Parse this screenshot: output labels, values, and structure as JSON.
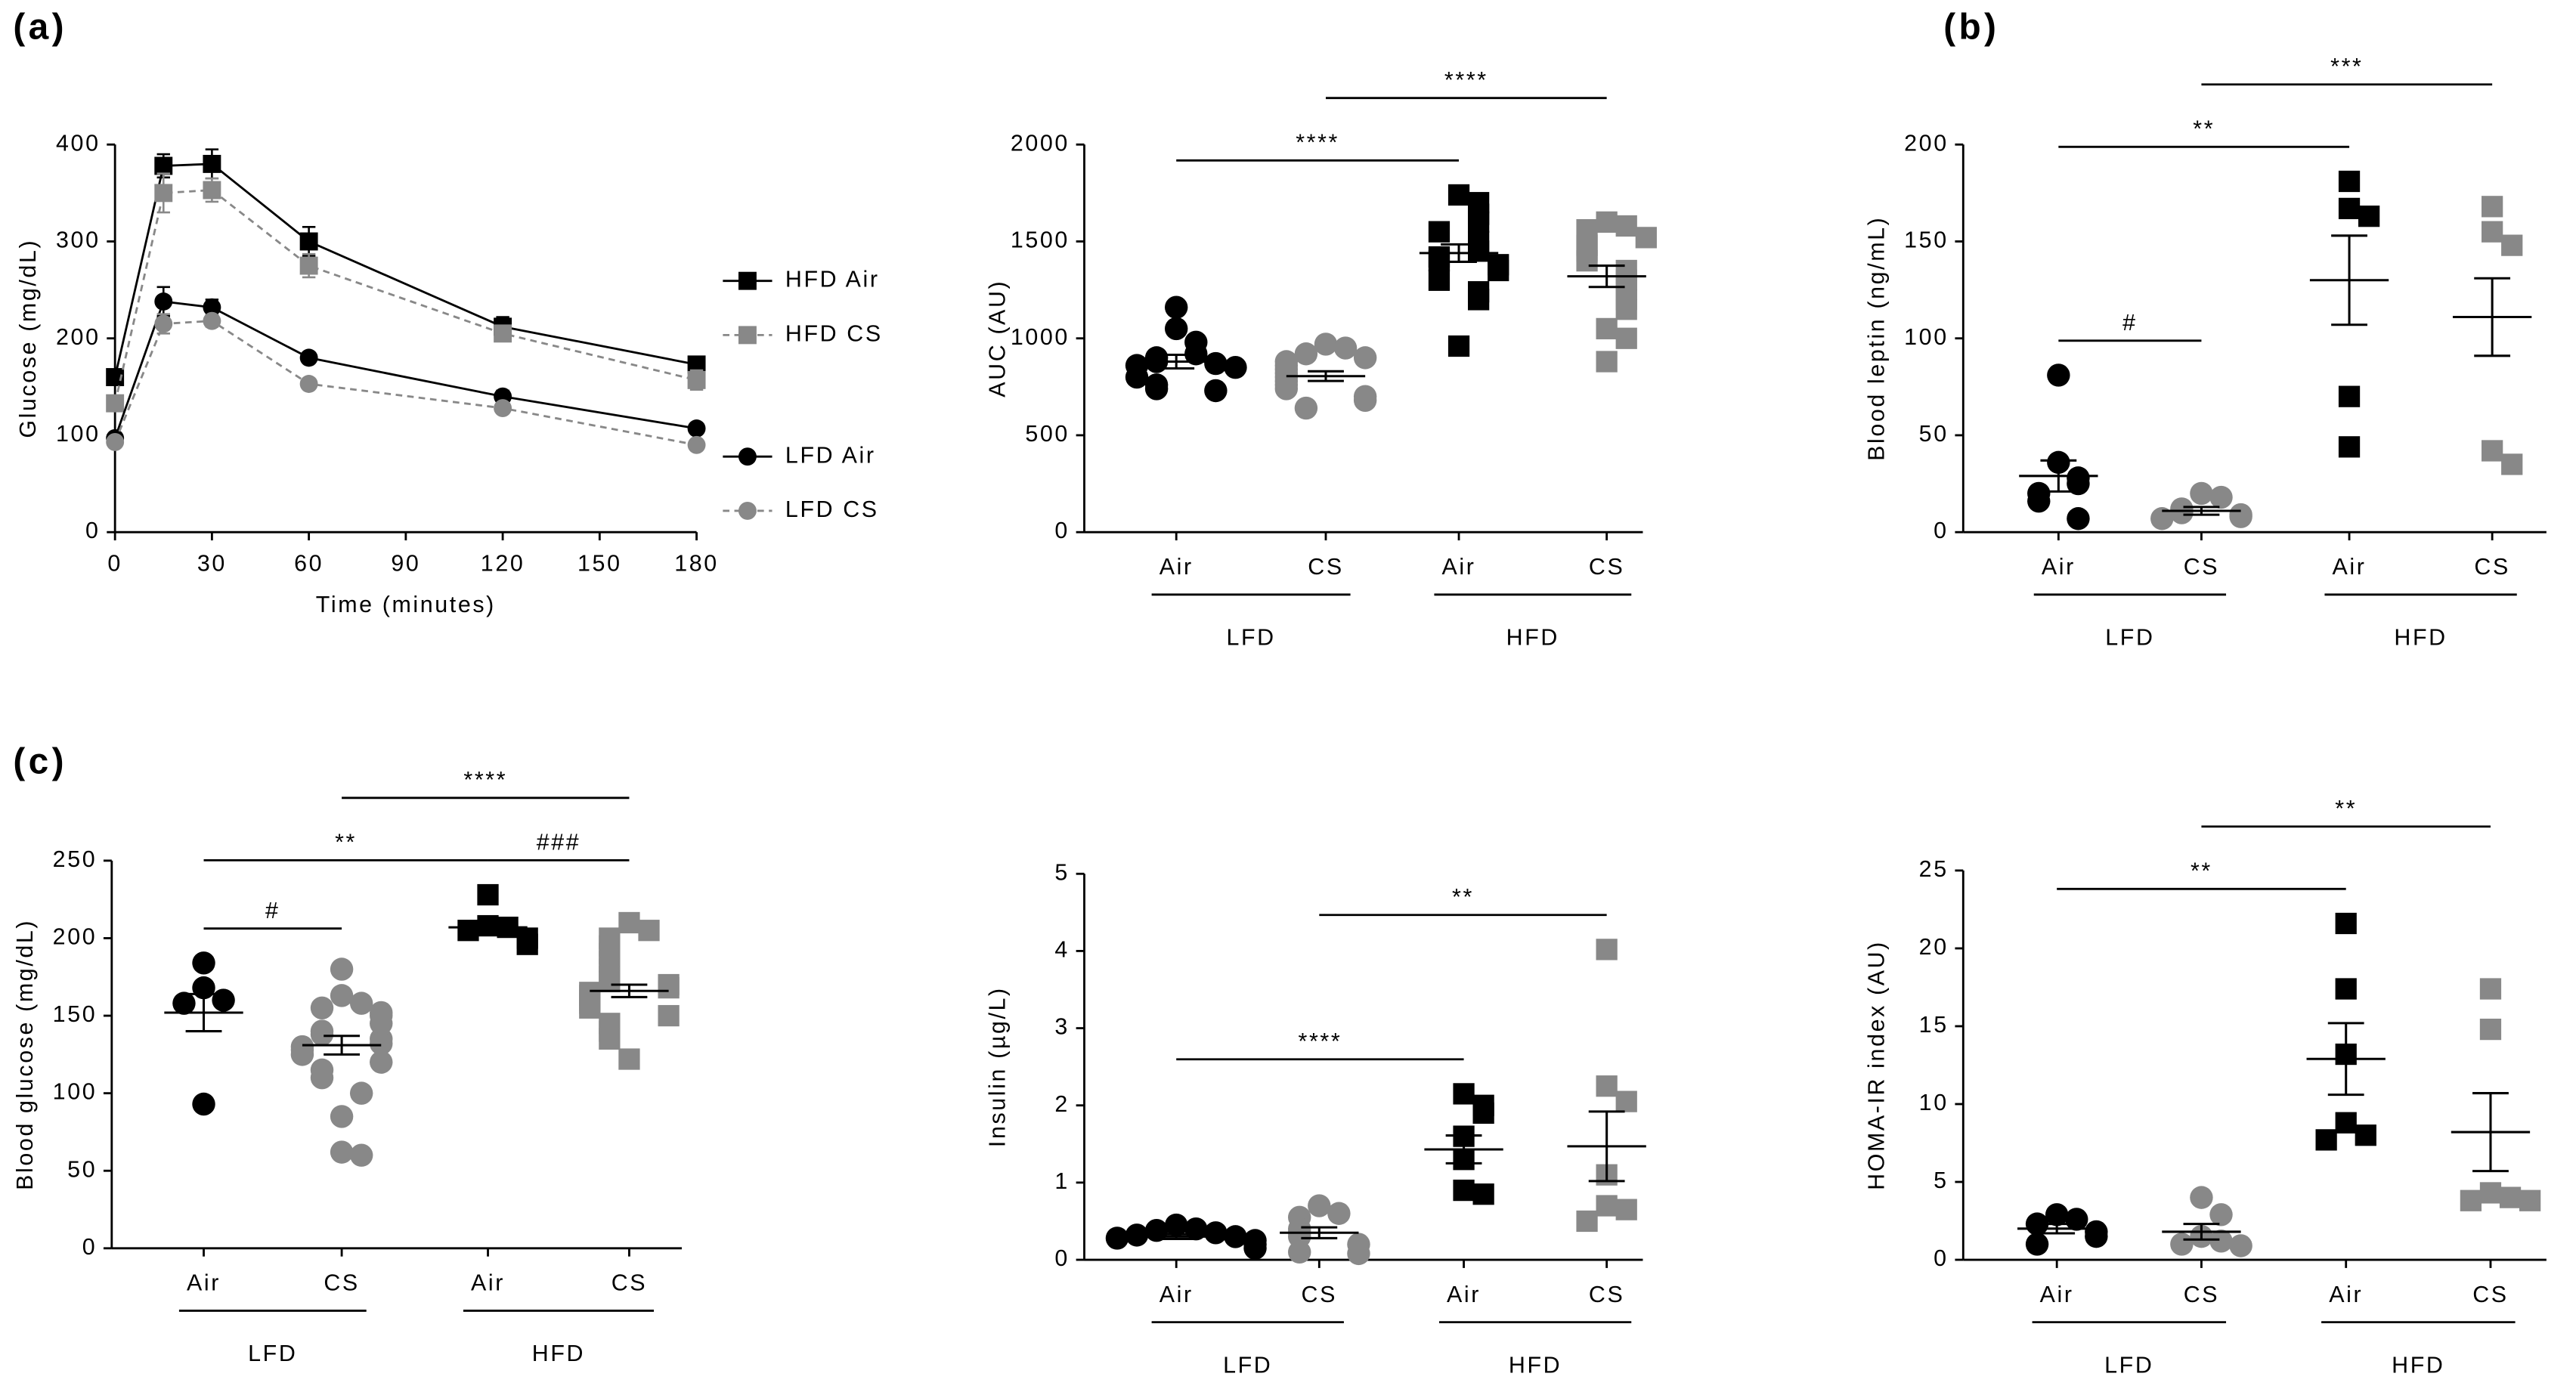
{
  "chart_data": [
    {
      "type": "line",
      "panel_label": "(a)",
      "xlabel": "Time (minutes)",
      "ylabel": "Glucose (mg/dL)",
      "x": [
        0,
        15,
        30,
        60,
        120,
        180
      ],
      "xlim": [
        0,
        180
      ],
      "xticks": [
        0,
        30,
        60,
        90,
        120,
        150,
        180
      ],
      "ylim": [
        0,
        400
      ],
      "yticks": [
        0,
        100,
        200,
        300,
        400
      ],
      "series": [
        {
          "name": "HFD Air",
          "color": "#000000",
          "marker": "square",
          "dashed": false,
          "values": [
            160,
            378,
            380,
            300,
            212,
            173
          ],
          "errors": [
            5,
            12,
            15,
            15,
            10,
            8
          ]
        },
        {
          "name": "HFD CS",
          "color": "#888888",
          "marker": "square",
          "dashed": true,
          "values": [
            133,
            350,
            353,
            275,
            205,
            157
          ],
          "errors": [
            5,
            20,
            12,
            12,
            8,
            10
          ]
        },
        {
          "name": "LFD Air",
          "color": "#000000",
          "marker": "circle",
          "dashed": false,
          "values": [
            97,
            238,
            232,
            180,
            140,
            107
          ],
          "errors": [
            5,
            15,
            8,
            4,
            6,
            4
          ]
        },
        {
          "name": "LFD CS",
          "color": "#888888",
          "marker": "circle",
          "dashed": true,
          "values": [
            93,
            215,
            218,
            153,
            128,
            90
          ],
          "errors": [
            4,
            10,
            6,
            4,
            4,
            4
          ]
        }
      ]
    },
    {
      "type": "dot",
      "ylabel": "AUC (AU)",
      "categories": [
        "Air",
        "CS",
        "Air",
        "CS"
      ],
      "group_labels": [
        "LFD",
        "HFD"
      ],
      "ylim": [
        0,
        2000
      ],
      "yticks": [
        0,
        500,
        1000,
        1500,
        2000
      ],
      "groups": [
        {
          "color": "#000000",
          "marker": "circle",
          "points": [
            1160,
            1050,
            980,
            920,
            900,
            880,
            870,
            860,
            850,
            800,
            760,
            740,
            730
          ],
          "mean": 880,
          "sem": 35
        },
        {
          "color": "#888888",
          "marker": "circle",
          "points": [
            970,
            950,
            920,
            900,
            880,
            860,
            840,
            820,
            800,
            780,
            760,
            740,
            700,
            680,
            640
          ],
          "mean": 805,
          "sem": 25
        },
        {
          "color": "#000000",
          "marker": "square",
          "points": [
            1740,
            1700,
            1640,
            1600,
            1550,
            1500,
            1450,
            1420,
            1400,
            1380,
            1350,
            1300,
            1240,
            1200,
            960
          ],
          "mean": 1440,
          "sem": 45
        },
        {
          "color": "#888888",
          "marker": "square",
          "points": [
            1600,
            1580,
            1560,
            1520,
            1480,
            1450,
            1400,
            1350,
            1300,
            1250,
            1200,
            1150,
            1050,
            1000,
            880
          ],
          "mean": 1320,
          "sem": 55
        }
      ],
      "brackets": [
        {
          "from": 0,
          "to": 2,
          "label": "****"
        },
        {
          "from": 1,
          "to": 3,
          "label": "****"
        }
      ]
    },
    {
      "type": "dot",
      "panel_label": "(b)",
      "ylabel": "Blood leptin (ng/mL)",
      "categories": [
        "Air",
        "CS",
        "Air",
        "CS"
      ],
      "group_labels": [
        "LFD",
        "HFD"
      ],
      "ylim": [
        0,
        200
      ],
      "yticks": [
        0,
        50,
        100,
        150,
        200
      ],
      "groups": [
        {
          "color": "#000000",
          "marker": "circle",
          "points": [
            81,
            36,
            28,
            25,
            20,
            16,
            7
          ],
          "mean": 29,
          "sem": 8
        },
        {
          "color": "#888888",
          "marker": "circle",
          "points": [
            20,
            18,
            12,
            10,
            9,
            8,
            7
          ],
          "mean": 11,
          "sem": 2
        },
        {
          "color": "#000000",
          "marker": "square",
          "points": [
            181,
            167,
            163,
            70,
            44
          ],
          "mean": 130,
          "sem": 23
        },
        {
          "color": "#888888",
          "marker": "square",
          "points": [
            168,
            155,
            148,
            42,
            35
          ],
          "mean": 111,
          "sem": 20
        }
      ],
      "brackets": [
        {
          "from": 0,
          "to": 1,
          "label": "#"
        },
        {
          "from": 0,
          "to": 2,
          "label": "**"
        },
        {
          "from": 1,
          "to": 3,
          "label": "***"
        }
      ]
    },
    {
      "type": "dot",
      "panel_label": "(c)",
      "ylabel": "Blood glucose (mg/dL)",
      "categories": [
        "Air",
        "CS",
        "Air",
        "CS"
      ],
      "group_labels": [
        "LFD",
        "HFD"
      ],
      "ylim": [
        0,
        250
      ],
      "yticks": [
        0,
        50,
        100,
        150,
        200,
        250
      ],
      "groups": [
        {
          "color": "#000000",
          "marker": "circle",
          "points": [
            184,
            168,
            160,
            158,
            93
          ],
          "mean": 152,
          "sem": 12
        },
        {
          "color": "#888888",
          "marker": "circle",
          "points": [
            180,
            163,
            158,
            155,
            152,
            150,
            145,
            140,
            138,
            135,
            132,
            130,
            128,
            125,
            120,
            115,
            110,
            100,
            85,
            62,
            60
          ],
          "mean": 131,
          "sem": 6
        },
        {
          "color": "#000000",
          "marker": "square",
          "points": [
            228,
            208,
            207,
            205,
            200,
            196
          ],
          "mean": 207,
          "sem": 4
        },
        {
          "color": "#888888",
          "marker": "square",
          "points": [
            210,
            205,
            200,
            195,
            190,
            185,
            180,
            175,
            172,
            170,
            168,
            165,
            163,
            160,
            158,
            155,
            150,
            145,
            140,
            135,
            122
          ],
          "mean": 166,
          "sem": 4
        }
      ],
      "brackets": [
        {
          "from": 0,
          "to": 1,
          "label": "#"
        },
        {
          "from": 2,
          "to": 3,
          "label": "###"
        },
        {
          "from": 0,
          "to": 2,
          "label": "**"
        },
        {
          "from": 1,
          "to": 3,
          "label": "****"
        }
      ]
    },
    {
      "type": "dot",
      "ylabel": "Insulin (µg/L)",
      "categories": [
        "Air",
        "CS",
        "Air",
        "CS"
      ],
      "group_labels": [
        "LFD",
        "HFD"
      ],
      "ylim": [
        0,
        5
      ],
      "yticks": [
        0,
        1,
        2,
        3,
        4,
        5
      ],
      "groups": [
        {
          "color": "#000000",
          "marker": "circle",
          "points": [
            0.45,
            0.4,
            0.38,
            0.35,
            0.32,
            0.3,
            0.28,
            0.25,
            0.2,
            0.15
          ],
          "mean": 0.3,
          "sem": 0.03
        },
        {
          "color": "#888888",
          "marker": "circle",
          "points": [
            0.7,
            0.6,
            0.55,
            0.4,
            0.35,
            0.3,
            0.2,
            0.1,
            0.08
          ],
          "mean": 0.35,
          "sem": 0.07
        },
        {
          "color": "#000000",
          "marker": "square",
          "points": [
            2.15,
            2.0,
            1.9,
            1.6,
            1.3,
            0.9,
            0.85
          ],
          "mean": 1.43,
          "sem": 0.18
        },
        {
          "color": "#888888",
          "marker": "square",
          "points": [
            4.02,
            2.25,
            2.05,
            1.1,
            0.7,
            0.65,
            0.5
          ],
          "mean": 1.47,
          "sem": 0.45
        }
      ],
      "brackets": [
        {
          "from": 0,
          "to": 2,
          "label": "****"
        },
        {
          "from": 1,
          "to": 3,
          "label": "**"
        }
      ]
    },
    {
      "type": "dot",
      "ylabel": "HOMA-IR index (AU)",
      "categories": [
        "Air",
        "CS",
        "Air",
        "CS"
      ],
      "group_labels": [
        "LFD",
        "HFD"
      ],
      "ylim": [
        0,
        25
      ],
      "yticks": [
        0,
        5,
        10,
        15,
        20,
        25
      ],
      "groups": [
        {
          "color": "#000000",
          "marker": "circle",
          "points": [
            2.9,
            2.6,
            2.3,
            1.8,
            1.5,
            1.0
          ],
          "mean": 2.0,
          "sem": 0.3
        },
        {
          "color": "#888888",
          "marker": "circle",
          "points": [
            4.0,
            2.9,
            1.5,
            1.2,
            1.0,
            0.9
          ],
          "mean": 1.8,
          "sem": 0.5
        },
        {
          "color": "#000000",
          "marker": "square",
          "points": [
            21.6,
            17.4,
            13.2,
            8.8,
            8.0,
            7.7
          ],
          "mean": 12.9,
          "sem": 2.3
        },
        {
          "color": "#888888",
          "marker": "square",
          "points": [
            17.4,
            14.8,
            4.3,
            4.0,
            3.8,
            3.8
          ],
          "mean": 8.2,
          "sem": 2.5
        }
      ],
      "brackets": [
        {
          "from": 0,
          "to": 2,
          "label": "**"
        },
        {
          "from": 1,
          "to": 3,
          "label": "**"
        }
      ]
    }
  ]
}
